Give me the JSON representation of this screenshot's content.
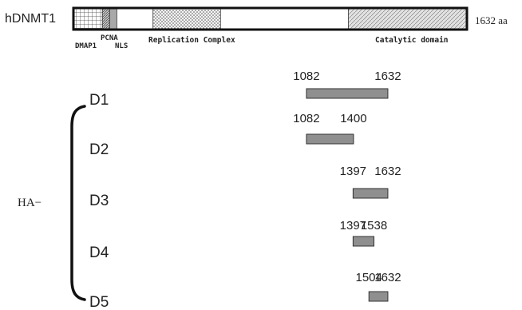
{
  "protein": {
    "name": "hDNMT1",
    "length_label": "1632 aa",
    "total_length": 1632,
    "domains": [
      {
        "label": "DMAP1",
        "start": 1,
        "end": 120,
        "pattern": "grid"
      },
      {
        "label": "PCNA",
        "start": 120,
        "end": 150,
        "pattern": "hatch-dense"
      },
      {
        "label": "NLS",
        "start": 150,
        "end": 180,
        "pattern": "gray"
      },
      {
        "label": "Replication Complex",
        "start": 330,
        "end": 610,
        "pattern": "dots"
      },
      {
        "label": "Catalytic domain",
        "start": 1140,
        "end": 1632,
        "pattern": "hatch"
      }
    ]
  },
  "tag_label": "HA−",
  "constructs": [
    {
      "name": "D1",
      "start": 1082,
      "end": 1632,
      "start_label": "1082",
      "end_label": "1632"
    },
    {
      "name": "D2",
      "start": 1082,
      "end": 1400,
      "start_label": "1082",
      "end_label": "1400"
    },
    {
      "name": "D3",
      "start": 1397,
      "end": 1632,
      "start_label": "1397",
      "end_label": "1632"
    },
    {
      "name": "D4",
      "start": 1397,
      "end": 1538,
      "start_label": "1397",
      "end_label": "1538"
    },
    {
      "name": "D5",
      "start": 1504,
      "end": 1632,
      "start_label": "1504",
      "end_label": "1632"
    }
  ],
  "colors": {
    "bar_fill": "#8f8f8f",
    "outline": "#111111",
    "domain_gray": "#a8a8a8"
  }
}
